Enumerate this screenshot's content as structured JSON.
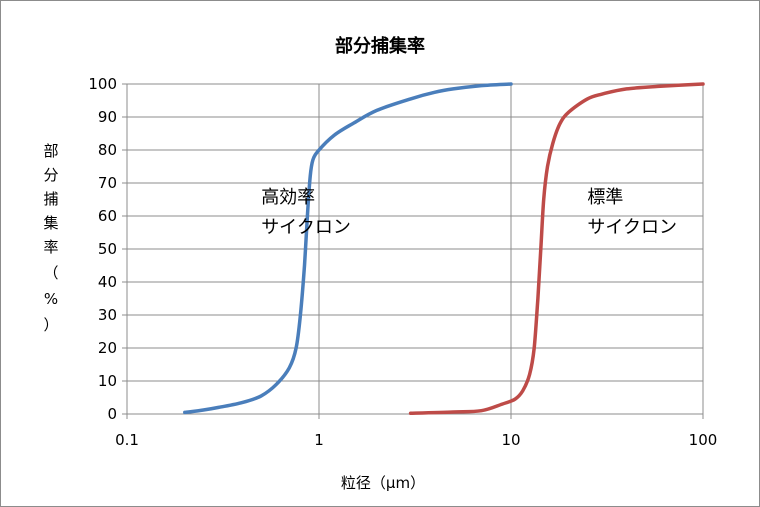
{
  "chart_data": {
    "type": "line",
    "title": "部分捕集率",
    "xlabel": "粒径（μm）",
    "ylabel": "部分捕集率（%）",
    "x_scale": "log",
    "xlim": [
      0.1,
      100
    ],
    "ylim": [
      0,
      100
    ],
    "grid": true,
    "x_ticks": [
      "0.1",
      "1",
      "10",
      "100"
    ],
    "y_ticks": [
      "0",
      "10",
      "20",
      "30",
      "40",
      "50",
      "60",
      "70",
      "80",
      "90",
      "100"
    ],
    "series": [
      {
        "color": "#4a7ebb",
        "points": [
          [
            0.2,
            0.5
          ],
          [
            0.25,
            1.2
          ],
          [
            0.3,
            2.0
          ],
          [
            0.4,
            3.5
          ],
          [
            0.5,
            5.5
          ],
          [
            0.6,
            9.0
          ],
          [
            0.7,
            14.0
          ],
          [
            0.76,
            20.0
          ],
          [
            0.8,
            30.0
          ],
          [
            0.84,
            45.0
          ],
          [
            0.87,
            60.0
          ],
          [
            0.9,
            72.0
          ],
          [
            0.93,
            77.0
          ],
          [
            1.0,
            80.0
          ],
          [
            1.2,
            84.5
          ],
          [
            1.5,
            88.0
          ],
          [
            2.0,
            92.0
          ],
          [
            3.0,
            95.5
          ],
          [
            4.0,
            97.5
          ],
          [
            5.0,
            98.5
          ],
          [
            7.0,
            99.5
          ],
          [
            10.0,
            100.0
          ]
        ]
      },
      {
        "color": "#be4b48",
        "points": [
          [
            3.0,
            0.2
          ],
          [
            5.0,
            0.6
          ],
          [
            7.0,
            1.0
          ],
          [
            9.0,
            3.0
          ],
          [
            10.5,
            4.5
          ],
          [
            11.5,
            7.0
          ],
          [
            12.5,
            12.0
          ],
          [
            13.2,
            20.0
          ],
          [
            13.8,
            35.0
          ],
          [
            14.3,
            50.0
          ],
          [
            14.8,
            65.0
          ],
          [
            15.5,
            75.0
          ],
          [
            16.5,
            82.0
          ],
          [
            18.0,
            88.0
          ],
          [
            20.0,
            91.5
          ],
          [
            25.0,
            95.5
          ],
          [
            30.0,
            97.0
          ],
          [
            40.0,
            98.5
          ],
          [
            60.0,
            99.3
          ],
          [
            100.0,
            100.0
          ]
        ]
      }
    ],
    "annotations": [
      {
        "lines": [
          "高効率",
          "サイクロン"
        ],
        "x": 0.5,
        "y": 64
      },
      {
        "lines": [
          "標準",
          "サイクロン"
        ],
        "x": 25,
        "y": 64
      }
    ]
  }
}
